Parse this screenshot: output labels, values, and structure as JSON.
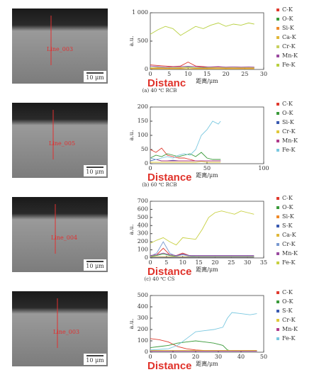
{
  "images": [
    {
      "line_label": "Line_003",
      "scale_bar": "10 μm"
    },
    {
      "line_label": "Line_005",
      "scale_bar": "10 μm"
    },
    {
      "line_label": "Line_004",
      "scale_bar": "10 μm"
    },
    {
      "line_label": "Line_003",
      "scale_bar": "10 μm"
    }
  ],
  "captions": [
    "(a) 40 ℃ RCB",
    "(b) 60 ℃ RCB",
    "(c) 40 ℃ CS"
  ],
  "chart_data": [
    {
      "type": "line",
      "annotation": "Distanc",
      "x_label": "距离/μm",
      "y_label": "a.u.",
      "xlim": [
        0,
        30
      ],
      "xticks": [
        0,
        5,
        10,
        15,
        20,
        25,
        30
      ],
      "ylim": [
        0,
        1000
      ],
      "yticks": [
        0,
        500,
        {
          "value": 1000,
          "label": "1 000"
        }
      ],
      "x": [
        0,
        2,
        4,
        6,
        8,
        10,
        12,
        14,
        16,
        18,
        20,
        22,
        24,
        26,
        27.5
      ],
      "series": [
        {
          "name": "C-K",
          "color": "#e03a2e",
          "values": [
            80,
            70,
            60,
            50,
            60,
            130,
            60,
            50,
            40,
            45,
            40,
            45,
            40,
            40,
            40
          ]
        },
        {
          "name": "O-K",
          "color": "#3a9a3a",
          "values": [
            30,
            35,
            30,
            25,
            30,
            40,
            30,
            25,
            30,
            25,
            30,
            25,
            30,
            25,
            30
          ]
        },
        {
          "name": "Si-K",
          "color": "#f08a2a",
          "values": [
            20,
            25,
            20,
            20,
            25,
            30,
            20,
            20,
            20,
            25,
            20,
            20,
            20,
            20,
            20
          ]
        },
        {
          "name": "Ca-K",
          "color": "#e0b83a",
          "values": [
            10,
            12,
            10,
            10,
            12,
            10,
            10,
            12,
            10,
            10,
            12,
            10,
            10,
            10,
            10
          ]
        },
        {
          "name": "Cr-K",
          "color": "#c8d060",
          "values": [
            30,
            35,
            30,
            30,
            35,
            30,
            30,
            35,
            30,
            30,
            30,
            30,
            30,
            30,
            30
          ]
        },
        {
          "name": "Mn-K",
          "color": "#9a4aa0",
          "values": [
            60,
            50,
            40,
            45,
            50,
            55,
            50,
            40,
            45,
            50,
            40,
            45,
            40,
            45,
            40
          ]
        },
        {
          "name": "Fe-K",
          "color": "#b8d040",
          "values": [
            620,
            700,
            760,
            720,
            600,
            680,
            760,
            720,
            780,
            820,
            760,
            800,
            780,
            820,
            800
          ]
        }
      ]
    },
    {
      "type": "line",
      "annotation": "Distance",
      "x_label": "距离/μm",
      "y_label": "a.u.",
      "xlim": [
        0,
        100
      ],
      "xticks": [
        0,
        50,
        100
      ],
      "ylim": [
        0,
        200
      ],
      "yticks": [
        0,
        50,
        100,
        150,
        200
      ],
      "x": [
        0,
        5,
        10,
        15,
        20,
        25,
        30,
        35,
        40,
        45,
        50,
        55,
        60,
        62
      ],
      "series": [
        {
          "name": "C-K",
          "color": "#e03a2e",
          "values": [
            50,
            40,
            55,
            30,
            25,
            20,
            20,
            15,
            10,
            10,
            10,
            10,
            10,
            10
          ]
        },
        {
          "name": "O-K",
          "color": "#3a9a3a",
          "values": [
            20,
            30,
            25,
            35,
            30,
            25,
            30,
            35,
            25,
            40,
            20,
            15,
            15,
            15
          ]
        },
        {
          "name": "Si-K",
          "color": "#3a5ab0",
          "values": [
            10,
            15,
            10,
            10,
            12,
            10,
            10,
            10,
            10,
            10,
            10,
            10,
            10,
            10
          ]
        },
        {
          "name": "Cr-K",
          "color": "#e0c83a",
          "values": [
            5,
            5,
            5,
            5,
            5,
            5,
            5,
            5,
            5,
            8,
            5,
            5,
            5,
            5
          ]
        },
        {
          "name": "Mn-K",
          "color": "#b03a8a",
          "values": [
            20,
            15,
            10,
            10,
            10,
            10,
            10,
            10,
            10,
            10,
            10,
            10,
            10,
            10
          ]
        },
        {
          "name": "Fe-K",
          "color": "#7ac8e0",
          "values": [
            20,
            15,
            20,
            25,
            20,
            30,
            35,
            30,
            50,
            100,
            120,
            150,
            140,
            150
          ]
        }
      ]
    },
    {
      "type": "line",
      "annotation": "Distance",
      "x_label": "距离/μm",
      "y_label": "a.u.",
      "xlim": [
        0,
        35
      ],
      "xticks": [
        0,
        5,
        10,
        15,
        20,
        25,
        30,
        35
      ],
      "ylim": [
        0,
        700
      ],
      "yticks": [
        0,
        100,
        200,
        300,
        400,
        500,
        600,
        700
      ],
      "x": [
        0,
        2,
        4,
        6,
        8,
        10,
        12,
        14,
        16,
        18,
        20,
        22,
        24,
        26,
        28,
        30,
        32
      ],
      "series": [
        {
          "name": "C-K",
          "color": "#e03a2e",
          "values": [
            30,
            40,
            120,
            40,
            30,
            60,
            30,
            20,
            20,
            20,
            20,
            20,
            20,
            20,
            20,
            20,
            20
          ]
        },
        {
          "name": "O-K",
          "color": "#3a9a3a",
          "values": [
            20,
            30,
            50,
            30,
            20,
            50,
            30,
            20,
            20,
            20,
            20,
            20,
            20,
            20,
            20,
            20,
            20
          ]
        },
        {
          "name": "Si-K",
          "color": "#f08a2a",
          "values": [
            10,
            12,
            10,
            10,
            12,
            10,
            10,
            10,
            10,
            10,
            10,
            10,
            10,
            10,
            10,
            10,
            10
          ]
        },
        {
          "name": "S-K",
          "color": "#3a5ab0",
          "values": [
            10,
            10,
            10,
            10,
            10,
            10,
            10,
            10,
            10,
            10,
            10,
            10,
            10,
            10,
            10,
            10,
            10
          ]
        },
        {
          "name": "Ca-K",
          "color": "#e0b83a",
          "values": [
            15,
            15,
            15,
            15,
            15,
            15,
            15,
            15,
            15,
            15,
            15,
            15,
            15,
            15,
            15,
            15,
            15
          ]
        },
        {
          "name": "Cr-K",
          "color": "#7a9ad0",
          "values": [
            20,
            60,
            200,
            60,
            20,
            40,
            20,
            20,
            20,
            20,
            20,
            20,
            20,
            20,
            20,
            20,
            20
          ]
        },
        {
          "name": "Mn-K",
          "color": "#9a4aa0",
          "values": [
            30,
            40,
            60,
            40,
            30,
            50,
            30,
            30,
            30,
            30,
            30,
            30,
            30,
            30,
            30,
            30,
            30
          ]
        },
        {
          "name": "Fe-K",
          "color": "#c8d040",
          "values": [
            180,
            220,
            250,
            200,
            160,
            250,
            240,
            230,
            350,
            500,
            560,
            580,
            560,
            540,
            580,
            560,
            540
          ]
        }
      ]
    },
    {
      "type": "line",
      "annotation": "Distance",
      "x_label": "距离/μm",
      "y_label": "a.u.",
      "xlim": [
        0,
        50
      ],
      "xticks": [
        0,
        10,
        20,
        30,
        40,
        50
      ],
      "ylim": [
        0,
        500
      ],
      "yticks": [
        0,
        100,
        200,
        300,
        400,
        500
      ],
      "x": [
        0,
        4,
        8,
        12,
        16,
        20,
        24,
        28,
        32,
        34,
        36,
        40,
        44,
        47
      ],
      "series": [
        {
          "name": "C-K",
          "color": "#e03a2e",
          "values": [
            120,
            110,
            90,
            50,
            30,
            20,
            15,
            15,
            15,
            15,
            15,
            15,
            15,
            15
          ]
        },
        {
          "name": "O-K",
          "color": "#3a9a3a",
          "values": [
            40,
            50,
            60,
            80,
            90,
            100,
            90,
            80,
            60,
            20,
            10,
            10,
            10,
            10
          ]
        },
        {
          "name": "S-K",
          "color": "#3a5ab0",
          "values": [
            10,
            10,
            10,
            10,
            10,
            10,
            10,
            10,
            10,
            10,
            10,
            10,
            10,
            10
          ]
        },
        {
          "name": "Cr-K",
          "color": "#e0c83a",
          "values": [
            15,
            15,
            15,
            15,
            15,
            15,
            15,
            15,
            15,
            15,
            15,
            15,
            15,
            15
          ]
        },
        {
          "name": "Mn-K",
          "color": "#b03a8a",
          "values": [
            10,
            10,
            10,
            10,
            10,
            10,
            10,
            10,
            10,
            10,
            10,
            10,
            10,
            10
          ]
        },
        {
          "name": "Fe-K",
          "color": "#7ac8e0",
          "values": [
            20,
            25,
            30,
            60,
            120,
            180,
            190,
            200,
            220,
            300,
            350,
            340,
            330,
            340
          ]
        }
      ]
    }
  ]
}
